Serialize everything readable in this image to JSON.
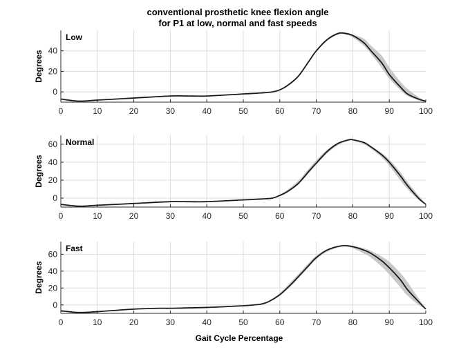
{
  "figure": {
    "title_lines": [
      "conventional prosthetic knee flexion angle",
      "for P1 at low, normal and fast speeds"
    ],
    "xlabel": "Gait Cycle Percentage"
  },
  "colors": {
    "line": "#1a1a1a",
    "band": "#c8c8c8",
    "grid": "#dcdcdc",
    "axis": "#262626"
  },
  "chart_data": [
    {
      "type": "line",
      "panel_label": "Low",
      "ylabel": "Degrees",
      "xlim": [
        0,
        100
      ],
      "ylim": [
        -10,
        60
      ],
      "xticks": [
        0,
        10,
        20,
        30,
        40,
        50,
        60,
        70,
        80,
        90,
        100
      ],
      "yticks": [
        0,
        20,
        40
      ],
      "grid": true,
      "x": [
        0,
        5,
        10,
        20,
        30,
        35,
        40,
        50,
        55,
        58,
        60,
        62,
        65,
        68,
        70,
        73,
        76,
        78,
        80,
        83,
        85,
        88,
        90,
        93,
        95,
        98,
        100
      ],
      "mean": [
        -7,
        -9,
        -8,
        -6,
        -4,
        -4,
        -4,
        -2,
        -1,
        0,
        2,
        6,
        15,
        30,
        40,
        51,
        57,
        57,
        55,
        48,
        40,
        28,
        17,
        5,
        -2,
        -7,
        -9
      ],
      "band_upper": [
        -7,
        -9,
        -8,
        -6,
        -4,
        -4,
        -4,
        -2,
        -1,
        0,
        2,
        6,
        15,
        31,
        41,
        52,
        58,
        58,
        56,
        52,
        45,
        35,
        24,
        10,
        3,
        -5,
        -9
      ],
      "band_lower": [
        -7,
        -9,
        -8,
        -6,
        -4,
        -4,
        -4,
        -2,
        -1,
        0,
        2,
        5,
        14,
        29,
        39,
        50,
        56,
        56,
        53,
        45,
        37,
        23,
        13,
        2,
        -4,
        -8,
        -9
      ]
    },
    {
      "type": "line",
      "panel_label": "Normal",
      "ylabel": "Degrees",
      "xlim": [
        0,
        100
      ],
      "ylim": [
        -10,
        70
      ],
      "xticks": [
        0,
        10,
        20,
        30,
        40,
        50,
        60,
        70,
        80,
        90,
        100
      ],
      "yticks": [
        0,
        20,
        40,
        60
      ],
      "grid": true,
      "x": [
        0,
        5,
        10,
        20,
        30,
        35,
        40,
        50,
        55,
        58,
        60,
        62,
        65,
        68,
        70,
        73,
        76,
        79,
        80,
        83,
        85,
        88,
        90,
        93,
        95,
        98,
        100
      ],
      "mean": [
        -7,
        -9,
        -8,
        -6,
        -4,
        -4,
        -4,
        -2,
        -1,
        0,
        3,
        7,
        16,
        30,
        39,
        52,
        61,
        65,
        65,
        62,
        57,
        48,
        40,
        25,
        14,
        0,
        -7
      ],
      "band_upper": [
        -7,
        -9,
        -8,
        -6,
        -4,
        -4,
        -4,
        -2,
        -1,
        0,
        4,
        9,
        19,
        33,
        42,
        54,
        62,
        65,
        65,
        62,
        58,
        50,
        43,
        29,
        18,
        3,
        -7
      ],
      "band_lower": [
        -7,
        -9,
        -8,
        -6,
        -4,
        -4,
        -4,
        -2,
        -1,
        0,
        2,
        6,
        15,
        28,
        37,
        50,
        59,
        64,
        64,
        60,
        55,
        45,
        36,
        20,
        10,
        -2,
        -7
      ]
    },
    {
      "type": "line",
      "panel_label": "Fast",
      "ylabel": "Degrees",
      "xlim": [
        0,
        100
      ],
      "ylim": [
        -10,
        75
      ],
      "xticks": [
        0,
        10,
        20,
        30,
        40,
        50,
        60,
        70,
        80,
        90,
        100
      ],
      "yticks": [
        0,
        20,
        40,
        60
      ],
      "grid": true,
      "x": [
        0,
        5,
        10,
        20,
        27,
        30,
        40,
        50,
        53,
        55,
        57,
        60,
        63,
        65,
        68,
        70,
        73,
        77,
        80,
        83,
        85,
        88,
        90,
        93,
        95,
        98,
        100
      ],
      "mean": [
        -7,
        -9,
        -8,
        -5,
        -4,
        -4,
        -3,
        -1,
        0,
        1,
        4,
        12,
        24,
        33,
        47,
        56,
        65,
        70,
        69,
        65,
        61,
        52,
        44,
        30,
        18,
        4,
        -5
      ],
      "band_upper": [
        -7,
        -9,
        -8,
        -5,
        -4,
        -4,
        -3,
        -1,
        0,
        2,
        5,
        14,
        27,
        36,
        50,
        58,
        66,
        71,
        70,
        67,
        64,
        57,
        51,
        38,
        27,
        8,
        -5
      ],
      "band_lower": [
        -7,
        -9,
        -8,
        -5,
        -4,
        -4,
        -3,
        -1,
        0,
        1,
        3,
        11,
        22,
        31,
        45,
        54,
        63,
        69,
        67,
        61,
        56,
        45,
        36,
        21,
        11,
        0,
        -5
      ]
    }
  ]
}
